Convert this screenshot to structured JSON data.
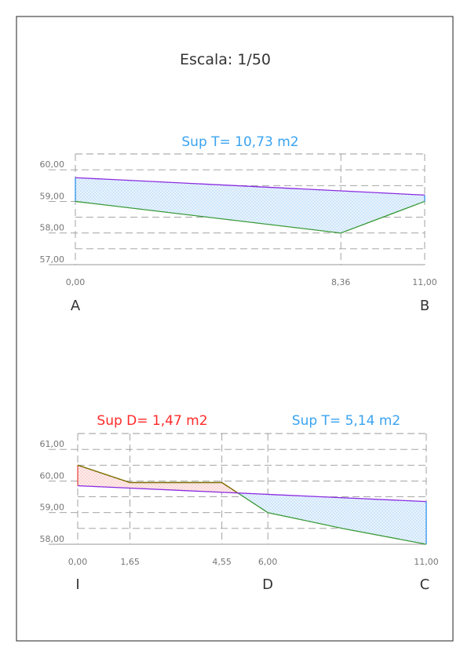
{
  "scale_label": "Escala: 1/50",
  "colors": {
    "frame": "#222222",
    "grid": "#999999",
    "axis": "#999999",
    "terrain": "#3a9a3a",
    "design": "#8a2be2",
    "fill_area": "#1e88e5",
    "cut_area": "#e53935",
    "cut_line": "#8a6a00",
    "label_blue": "#3aa3f0",
    "label_red": "#ff2a2a",
    "tick_text": "#777777",
    "letter_text": "#333333"
  },
  "chart_data": [
    {
      "type": "line",
      "id": "section-AB",
      "title": "Sup T= 10,73 m2",
      "x_ticks": [
        "0,00",
        "8,36",
        "11,00"
      ],
      "x_tick_values": [
        0,
        8.36,
        11.0
      ],
      "y_ticks": [
        "60,00",
        "59,00",
        "58,00",
        "57,00"
      ],
      "y_tick_values": [
        60,
        59,
        58,
        57
      ],
      "xlim": [
        0,
        11
      ],
      "ylim": [
        57,
        60.5
      ],
      "end_letters": {
        "left": "A",
        "right": "B"
      },
      "series": [
        {
          "role": "terrain",
          "points": [
            [
              0,
              59.0
            ],
            [
              8.36,
              58.0
            ],
            [
              11.0,
              59.0
            ]
          ]
        },
        {
          "role": "design",
          "points": [
            [
              0,
              59.75
            ],
            [
              11.0,
              59.2
            ]
          ]
        }
      ],
      "areas": [
        {
          "label": "Sup T= 10,73 m2",
          "kind": "fill"
        }
      ]
    },
    {
      "type": "line",
      "id": "section-IC",
      "x_ticks": [
        "0,00",
        "1,65",
        "4,55",
        "6,00",
        "11,00"
      ],
      "x_tick_values": [
        0,
        1.65,
        4.55,
        6.0,
        11.0
      ],
      "y_ticks": [
        "61,00",
        "60,00",
        "59,00",
        "58,00"
      ],
      "y_tick_values": [
        61,
        60,
        59,
        58
      ],
      "xlim": [
        0,
        11
      ],
      "ylim": [
        58,
        61.5
      ],
      "end_letters": {
        "left": "I",
        "mid": "D",
        "right": "C"
      },
      "mid_letter_x": 6.0,
      "series": [
        {
          "role": "terrain",
          "points": [
            [
              0,
              60.5
            ],
            [
              1.65,
              59.95
            ],
            [
              4.55,
              59.95
            ],
            [
              6.0,
              59.0
            ],
            [
              8.36,
              58.5
            ],
            [
              11.0,
              58.0
            ]
          ]
        },
        {
          "role": "design",
          "points": [
            [
              0,
              59.85
            ],
            [
              11.0,
              59.35
            ]
          ]
        }
      ],
      "areas": [
        {
          "label": "Sup D= 1,47 m2",
          "kind": "cut"
        },
        {
          "label": "Sup T= 5,14 m2",
          "kind": "fill"
        }
      ]
    }
  ]
}
